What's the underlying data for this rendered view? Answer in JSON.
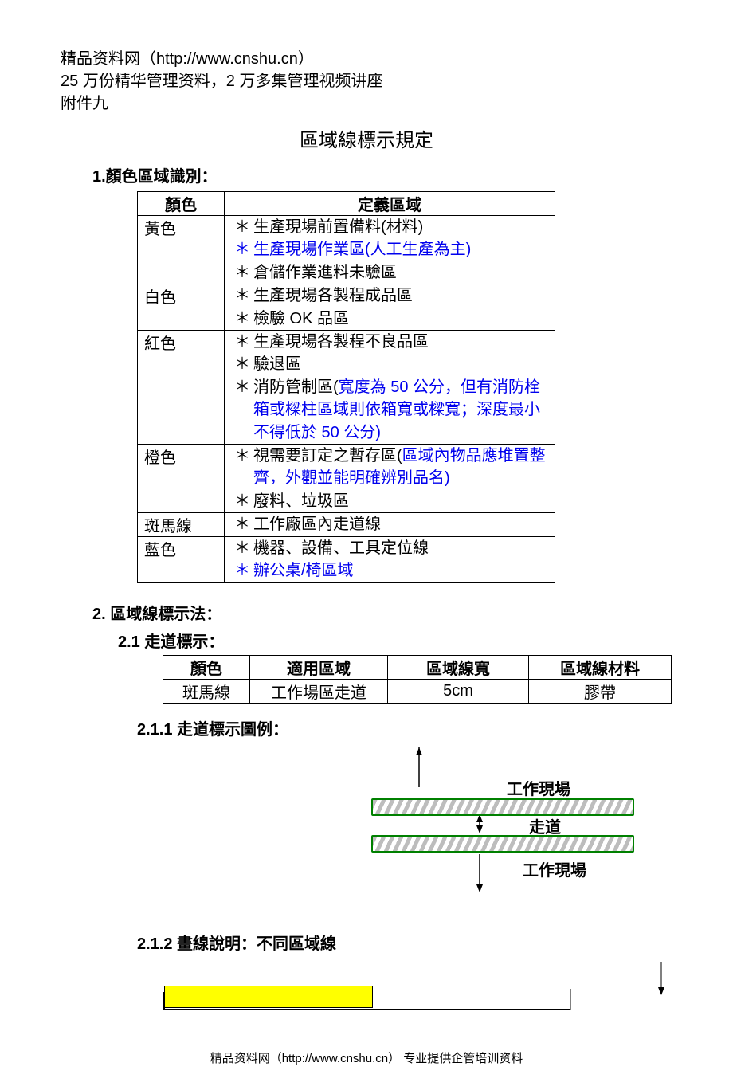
{
  "header": {
    "line1": "精品资料网（http://www.cnshu.cn）",
    "line2": "25 万份精华管理资料，2 万多集管理视频讲座",
    "line3": "附件九"
  },
  "title": "區域線標示規定",
  "section1": {
    "heading": "1.顏色區域識別：",
    "table": {
      "head_color": "顏色",
      "head_def": "定義區域",
      "rows": [
        {
          "color": "黃色",
          "items": [
            {
              "text": "生產現場前置備料(材料)",
              "blue": false
            },
            {
              "text": "生產現場作業區(人工生產為主)",
              "blue": true
            },
            {
              "text": "倉儲作業進料未驗區",
              "blue": false
            }
          ]
        },
        {
          "color": "白色",
          "items": [
            {
              "text": "生產現場各製程成品區",
              "blue": false
            },
            {
              "text": "檢驗 OK 品區",
              "blue": false
            }
          ]
        },
        {
          "color": "紅色",
          "items": [
            {
              "text": "生產現場各製程不良品區",
              "blue": false
            },
            {
              "text": "驗退區",
              "blue": false
            },
            {
              "text": "消防管制區(",
              "tail": "寬度為 50 公分，但有消防栓箱或樑柱區域則依箱寬或樑寬；深度最小不得低於 50 公分)",
              "blue": false,
              "tail_blue": true
            }
          ]
        },
        {
          "color": "橙色",
          "items": [
            {
              "text": "視需要訂定之暫存區(",
              "tail": "區域內物品應堆置整齊，外觀並能明確辨別品名)",
              "blue": false,
              "tail_blue": true
            },
            {
              "text": "廢料、垃圾區",
              "blue": false
            }
          ]
        },
        {
          "color": "斑馬線",
          "items": [
            {
              "text": "工作廠區內走道線",
              "blue": false
            }
          ]
        },
        {
          "color": "藍色",
          "items": [
            {
              "text": "機器、設備、工具定位線",
              "blue": false
            },
            {
              "text": "辦公桌/椅區域",
              "blue": true
            }
          ]
        }
      ]
    }
  },
  "section2": {
    "heading": "2. 區域線標示法：",
    "sub21": "2.1 走道標示：",
    "markTable": {
      "head": {
        "c1": "顏色",
        "c2": "適用區域",
        "c3": "區域線寬",
        "c4": "區域線材料"
      },
      "row": {
        "c1": "斑馬線",
        "c2": "工作場區走道",
        "c3": "5cm",
        "c4": "膠帶"
      }
    },
    "sub211": "2.1.1 走道標示圖例：",
    "diagram": {
      "label_top": "工作現場",
      "label_mid": "走道",
      "label_bot": "工作現場",
      "bar_color_border": "#008000",
      "arrow_color": "#000000"
    },
    "sub212": "2.1.2 畫線說明：不同區域線",
    "yellow_block_color": "#ffff00"
  },
  "footer": "精品资料网（http://www.cnshu.cn） 专业提供企管培训资料"
}
